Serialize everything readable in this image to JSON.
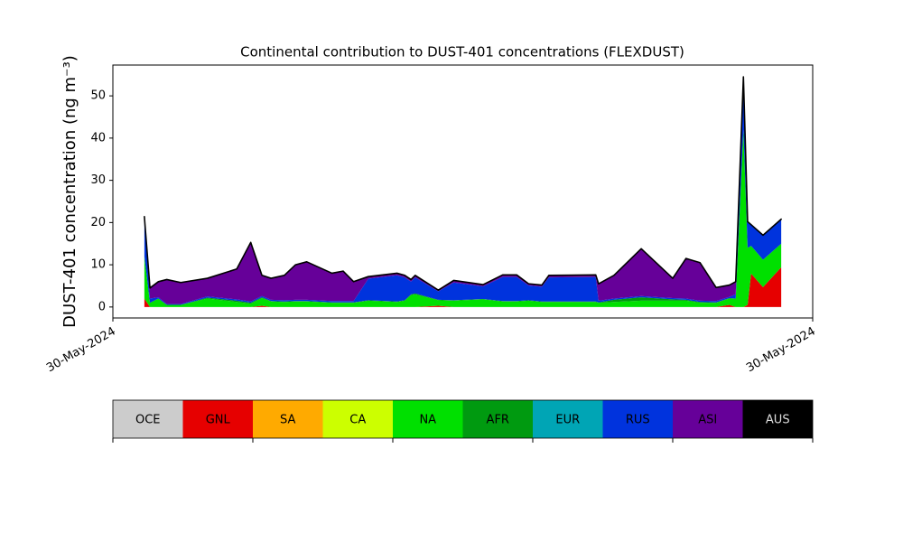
{
  "chart_data": {
    "type": "stacked_area",
    "title": "Continental contribution to DUST-401 concentrations (FLEXDUST)",
    "y_label": "DUST-401 concentration (ng m⁻³)",
    "x": [
      4.5,
      5.3,
      6.5,
      7.7,
      9.7,
      13.5,
      17.7,
      19.7,
      21.3,
      22.6,
      24.5,
      26.1,
      27.7,
      31.3,
      32.9,
      34.4,
      36.5,
      40.6,
      41.7,
      42.6,
      43.2,
      46.5,
      48.7,
      52.9,
      55.7,
      57.7,
      59.4,
      61.3,
      62.3,
      69,
      69.4,
      71.6,
      75.5,
      80,
      81.9,
      83.9,
      86.2,
      88.1,
      89,
      90.1,
      90.7,
      91.2,
      92.9,
      95.5
    ],
    "xlim": [
      0,
      100
    ],
    "xticks": [
      {
        "value": 0,
        "label": "30-May-2024"
      },
      {
        "value": 100,
        "label": "30-May-2024"
      }
    ],
    "ylim": [
      -2.6,
      57.3
    ],
    "yticks": [
      0,
      10,
      20,
      30,
      40,
      50
    ],
    "series": [
      {
        "name": "OCE",
        "color": "#cccccc",
        "values": [
          0,
          0,
          0,
          0,
          0,
          0,
          0,
          0,
          0,
          0,
          0,
          0,
          0,
          0,
          0,
          0,
          0,
          0,
          0,
          0,
          0,
          0,
          0,
          0,
          0,
          0,
          0,
          0,
          0,
          0,
          0,
          0,
          0,
          0,
          0,
          0,
          0,
          0,
          0,
          0,
          0,
          0,
          0,
          0
        ]
      },
      {
        "name": "GNL",
        "color": "#e60000",
        "values": [
          2,
          0,
          0,
          0,
          0,
          0,
          0,
          0,
          0.3,
          0,
          0,
          0,
          0,
          0,
          0,
          0,
          0,
          0,
          0,
          0,
          0,
          0.3,
          0,
          0,
          0,
          0,
          0,
          0,
          0,
          0,
          0,
          0,
          0,
          0,
          0,
          0,
          0,
          0.5,
          0,
          0,
          0.5,
          7.9,
          4.7,
          9.4
        ]
      },
      {
        "name": "SA",
        "color": "#ffaa00",
        "values": [
          0,
          0,
          0,
          0,
          0,
          0,
          0,
          0,
          0,
          0,
          0,
          0,
          0,
          0,
          0,
          0,
          0,
          0,
          0,
          0,
          0,
          0,
          0,
          0,
          0,
          0,
          0,
          0,
          0,
          0,
          0,
          0,
          0,
          0,
          0,
          0,
          0,
          0,
          0,
          0,
          0,
          0,
          0,
          0
        ]
      },
      {
        "name": "CA",
        "color": "#ccff00",
        "values": [
          0,
          0,
          0,
          0,
          0,
          0,
          0,
          0,
          0,
          0,
          0,
          0,
          0,
          0,
          0,
          0,
          0,
          0,
          0,
          0,
          0,
          0,
          0,
          0,
          0,
          0,
          0,
          0,
          0,
          0,
          0,
          0,
          0,
          0,
          0,
          0,
          0,
          0,
          0,
          0,
          0,
          0,
          0,
          0
        ]
      },
      {
        "name": "NA",
        "color": "#00e000",
        "values": [
          10,
          1,
          2,
          0.5,
          0.5,
          2,
          1.2,
          0.8,
          1.8,
          1.3,
          1.2,
          1.3,
          1.3,
          1,
          1,
          1,
          1.5,
          1.2,
          1.5,
          2.8,
          3,
          1.3,
          1.5,
          1.8,
          1.3,
          1.3,
          1.5,
          1.2,
          1.2,
          1.2,
          1,
          1.2,
          1.5,
          1.5,
          1.5,
          1,
          1,
          1.5,
          2,
          42,
          13.5,
          6.6,
          6.5,
          5.6
        ]
      },
      {
        "name": "AFR",
        "color": "#009a10",
        "values": [
          0,
          0,
          0,
          0,
          0,
          0.2,
          0.3,
          0.2,
          0.2,
          0.1,
          0.1,
          0.1,
          0.1,
          0.1,
          0.1,
          0.1,
          0.1,
          0.1,
          0.1,
          0.2,
          0.2,
          0.1,
          0.1,
          0.1,
          0.1,
          0.1,
          0.1,
          0.1,
          0.1,
          0.1,
          0.1,
          0.5,
          0.8,
          0.3,
          0.2,
          0.2,
          0.1,
          0.1,
          0,
          0,
          0,
          0,
          0,
          0
        ]
      },
      {
        "name": "EUR",
        "color": "#00a5b5",
        "values": [
          0,
          0,
          0,
          0,
          0,
          0,
          0,
          0,
          0,
          0,
          0,
          0,
          0,
          0,
          0,
          0,
          0,
          0,
          0,
          0,
          0,
          0,
          0,
          0,
          0,
          0,
          0,
          0,
          0,
          0,
          0,
          0,
          0,
          0,
          0,
          0,
          0,
          0,
          0,
          0,
          0,
          0,
          0,
          0
        ]
      },
      {
        "name": "RUS",
        "color": "#0033dd",
        "values": [
          9.4,
          1,
          0.3,
          0.2,
          0.2,
          0.3,
          0.3,
          0.3,
          0.3,
          0.3,
          0.3,
          0.3,
          0.3,
          0.3,
          0.3,
          0.3,
          5.1,
          6.2,
          5.4,
          3,
          3.8,
          2,
          4.2,
          3,
          5.7,
          5.7,
          3.5,
          3.5,
          5.7,
          5.8,
          0.4,
          0.3,
          0.3,
          0.3,
          0.3,
          0.3,
          0.3,
          0.3,
          1,
          12,
          6,
          5,
          5.8,
          5.8
        ]
      },
      {
        "name": "ASI",
        "color": "#660099",
        "values": [
          0,
          2.5,
          3.7,
          5.8,
          5.1,
          4.3,
          7.2,
          14,
          4.9,
          5.1,
          5.9,
          8.3,
          9,
          6.6,
          7.1,
          4.6,
          0.5,
          0.5,
          0.5,
          0.5,
          0.5,
          0.3,
          0.5,
          0.4,
          0.5,
          0.5,
          0.4,
          0.4,
          0.5,
          0.5,
          4,
          5.5,
          11.2,
          4.7,
          9.5,
          9,
          3.2,
          2.8,
          3,
          0.5,
          0.2,
          0,
          0,
          0
        ]
      },
      {
        "name": "AUS",
        "color": "#000000",
        "values": [
          0,
          0,
          0,
          0,
          0,
          0,
          0,
          0,
          0,
          0,
          0,
          0,
          0,
          0,
          0,
          0,
          0,
          0,
          0,
          0,
          0,
          0,
          0,
          0,
          0,
          0,
          0,
          0,
          0,
          0,
          0,
          0,
          0,
          0,
          0,
          0,
          0,
          0,
          0,
          0,
          0,
          0,
          0,
          0
        ]
      }
    ]
  }
}
